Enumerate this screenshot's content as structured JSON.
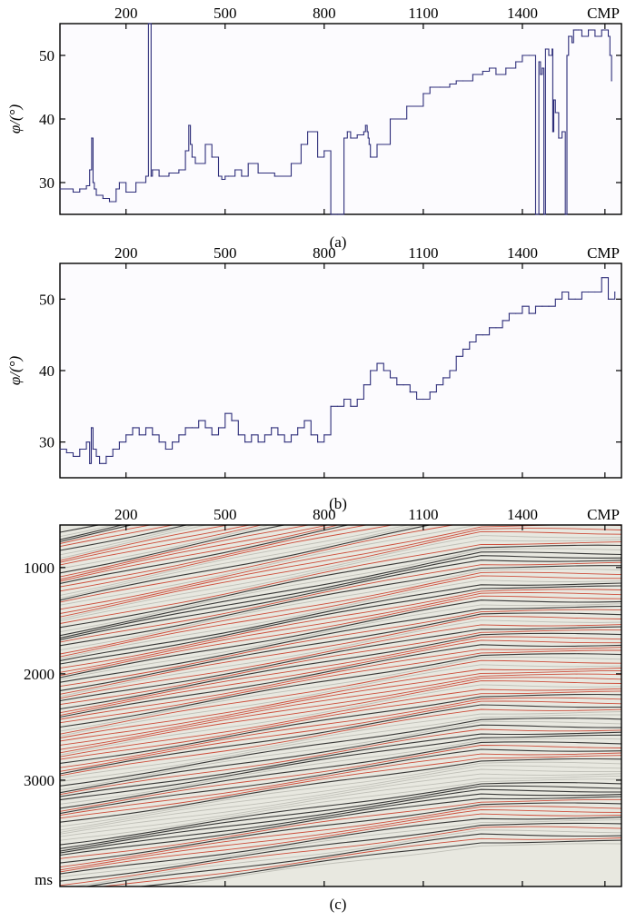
{
  "chart_data": [
    {
      "type": "line",
      "panel_label": "(a)",
      "xlabel": "CMP",
      "ylabel": "φ/(°)",
      "xlim": [
        0,
        1700
      ],
      "ylim": [
        25,
        55
      ],
      "x_ticks": [
        200,
        500,
        800,
        1100,
        1400
      ],
      "y_ticks": [
        30,
        40,
        50
      ],
      "grid": false,
      "series": [
        {
          "color": "#2e2e7a",
          "x": [
            0,
            40,
            60,
            80,
            90,
            96,
            100,
            104,
            110,
            130,
            150,
            170,
            180,
            200,
            230,
            260,
            268,
            272,
            276,
            280,
            300,
            330,
            360,
            380,
            390,
            395,
            400,
            410,
            440,
            460,
            480,
            490,
            500,
            510,
            530,
            550,
            570,
            600,
            650,
            700,
            730,
            750,
            780,
            800,
            820,
            840,
            860,
            870,
            880,
            900,
            920,
            925,
            930,
            933,
            936,
            940,
            960,
            1000,
            1050,
            1100,
            1120,
            1150,
            1180,
            1200,
            1220,
            1250,
            1280,
            1300,
            1320,
            1350,
            1380,
            1400,
            1420,
            1440,
            1450,
            1455,
            1460,
            1465,
            1470,
            1480,
            1490,
            1492,
            1495,
            1500,
            1510,
            1520,
            1530,
            1535,
            1540,
            1545,
            1550,
            1555,
            1560,
            1565,
            1570,
            1580,
            1600,
            1620,
            1640,
            1660,
            1665,
            1670
          ],
          "y": [
            29,
            28.5,
            29,
            29.5,
            32,
            37,
            30,
            29,
            28,
            27.5,
            27,
            29,
            30,
            28.5,
            30,
            31,
            55,
            55,
            31,
            32,
            31,
            31.5,
            32,
            35,
            39,
            36,
            34,
            33,
            36,
            34,
            31,
            30.5,
            31,
            31,
            32,
            31,
            33,
            31.5,
            31,
            33,
            36,
            38,
            34,
            35,
            25,
            25,
            37,
            38,
            37,
            37.5,
            38,
            39,
            38,
            37,
            36,
            34,
            36,
            40,
            42,
            44,
            45,
            45,
            45.5,
            46,
            46,
            47,
            47.5,
            48,
            47,
            48,
            49,
            50,
            50,
            25,
            49,
            47,
            48,
            25,
            51,
            50,
            51,
            38,
            43,
            41,
            37,
            38,
            25,
            50,
            53,
            53,
            52,
            54,
            54,
            54,
            54,
            53,
            54,
            53,
            54,
            53,
            50,
            46
          ]
        }
      ]
    },
    {
      "type": "line",
      "panel_label": "(b)",
      "xlabel": "CMP",
      "ylabel": "φ/(°)",
      "xlim": [
        0,
        1700
      ],
      "ylim": [
        25,
        55
      ],
      "x_ticks": [
        200,
        500,
        800,
        1100,
        1400
      ],
      "y_ticks": [
        30,
        40,
        50
      ],
      "grid": false,
      "series": [
        {
          "color": "#2e2e7a",
          "x": [
            0,
            20,
            40,
            60,
            80,
            90,
            95,
            100,
            110,
            120,
            140,
            160,
            180,
            200,
            220,
            240,
            260,
            280,
            300,
            320,
            340,
            360,
            380,
            400,
            420,
            440,
            460,
            480,
            500,
            520,
            540,
            560,
            580,
            600,
            620,
            640,
            660,
            680,
            700,
            720,
            740,
            760,
            780,
            800,
            820,
            840,
            860,
            880,
            900,
            920,
            940,
            960,
            980,
            1000,
            1020,
            1040,
            1060,
            1080,
            1100,
            1120,
            1140,
            1160,
            1180,
            1200,
            1220,
            1240,
            1260,
            1280,
            1300,
            1320,
            1340,
            1360,
            1380,
            1400,
            1420,
            1440,
            1460,
            1480,
            1500,
            1520,
            1540,
            1560,
            1580,
            1600,
            1620,
            1640,
            1660,
            1680
          ],
          "y": [
            29,
            28.5,
            28,
            29,
            30,
            27,
            32,
            29,
            28,
            27,
            28,
            29,
            30,
            31,
            32,
            31,
            32,
            31,
            30,
            29,
            30,
            31,
            32,
            32,
            33,
            32,
            31,
            32,
            34,
            33,
            31,
            30,
            31,
            30,
            31,
            32,
            31,
            30,
            31,
            32,
            33,
            31,
            30,
            31,
            35,
            35,
            36,
            35,
            36,
            38,
            40,
            41,
            40,
            39,
            38,
            38,
            37,
            36,
            36,
            37,
            38,
            39,
            40,
            42,
            43,
            44,
            45,
            45,
            46,
            46,
            47,
            48,
            48,
            49,
            48,
            49,
            49,
            49,
            50,
            51,
            50,
            50,
            51,
            51,
            51,
            53,
            50,
            51
          ]
        }
      ]
    },
    {
      "type": "heatmap",
      "panel_label": "(c)",
      "xlabel": "CMP",
      "ylabel": "ms",
      "xlim": [
        0,
        1700
      ],
      "ylim": [
        4000,
        600
      ],
      "x_ticks": [
        200,
        500,
        800,
        1100,
        1400
      ],
      "y_ticks": [
        1000,
        2000,
        3000
      ],
      "colors": [
        "#1a1a1a",
        "#c8321e",
        "#e8e8e0",
        "#ffffff"
      ]
    }
  ],
  "labels": {
    "cmp": "CMP",
    "ylabel_ab": "φ/(°)",
    "ylabel_c": "ms",
    "panel_a": "(a)",
    "panel_b": "(b)",
    "panel_c": "(c)"
  }
}
